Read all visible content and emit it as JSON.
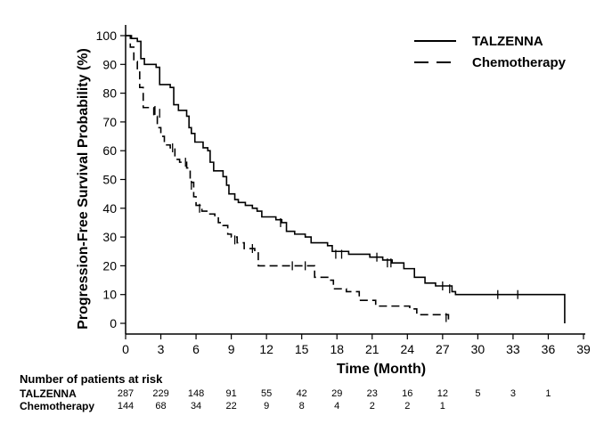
{
  "chart_data": {
    "type": "line",
    "title": "",
    "xlabel": "Time (Month)",
    "ylabel": "Progression-Free Survival Probability (%)",
    "xlim": [
      0,
      39
    ],
    "ylim": [
      0,
      100
    ],
    "x_ticks": [
      0,
      3,
      6,
      9,
      12,
      15,
      18,
      21,
      24,
      27,
      30,
      33,
      36,
      39
    ],
    "y_ticks": [
      0,
      10,
      20,
      30,
      40,
      50,
      60,
      70,
      80,
      90,
      100
    ],
    "legend_position": "top-right",
    "series": [
      {
        "name": "TALZENNA",
        "style": "solid",
        "points": [
          [
            0,
            100
          ],
          [
            0.5,
            99
          ],
          [
            1.0,
            98
          ],
          [
            1.3,
            92
          ],
          [
            1.6,
            90
          ],
          [
            2.6,
            89
          ],
          [
            2.9,
            83
          ],
          [
            3.8,
            82
          ],
          [
            4.1,
            76
          ],
          [
            4.5,
            74
          ],
          [
            5.2,
            72
          ],
          [
            5.4,
            68
          ],
          [
            5.6,
            66
          ],
          [
            5.9,
            63
          ],
          [
            6.6,
            61
          ],
          [
            7.0,
            60
          ],
          [
            7.2,
            56
          ],
          [
            7.5,
            53
          ],
          [
            8.3,
            51
          ],
          [
            8.6,
            48
          ],
          [
            8.8,
            45
          ],
          [
            9.3,
            43
          ],
          [
            9.6,
            42
          ],
          [
            10.2,
            41
          ],
          [
            10.8,
            40
          ],
          [
            11.2,
            39
          ],
          [
            11.6,
            37
          ],
          [
            12.2,
            37
          ],
          [
            12.8,
            36
          ],
          [
            13.3,
            35
          ],
          [
            13.7,
            32
          ],
          [
            14.4,
            31
          ],
          [
            15.3,
            30
          ],
          [
            15.8,
            28
          ],
          [
            17.2,
            27
          ],
          [
            17.6,
            25
          ],
          [
            19.0,
            24
          ],
          [
            20.8,
            23
          ],
          [
            21.9,
            22
          ],
          [
            22.7,
            21
          ],
          [
            23.7,
            19
          ],
          [
            24.6,
            16
          ],
          [
            25.5,
            14
          ],
          [
            26.4,
            13
          ],
          [
            27.3,
            13
          ],
          [
            27.8,
            11
          ],
          [
            28.1,
            10
          ],
          [
            37.4,
            10
          ],
          [
            37.4,
            0
          ]
        ],
        "censored": [
          [
            13.2,
            35
          ],
          [
            17.9,
            24
          ],
          [
            18.4,
            24
          ],
          [
            21.4,
            23
          ],
          [
            22.3,
            21
          ],
          [
            22.6,
            21
          ],
          [
            27.0,
            13
          ],
          [
            27.6,
            12
          ],
          [
            31.7,
            10
          ],
          [
            33.4,
            10
          ]
        ]
      },
      {
        "name": "Chemotherapy",
        "style": "dashed",
        "points": [
          [
            0,
            100
          ],
          [
            0.4,
            96
          ],
          [
            0.7,
            91
          ],
          [
            1.0,
            88
          ],
          [
            1.2,
            82
          ],
          [
            1.5,
            75
          ],
          [
            2.4,
            72
          ],
          [
            2.7,
            68
          ],
          [
            3.0,
            65
          ],
          [
            3.3,
            62
          ],
          [
            3.8,
            61
          ],
          [
            4.2,
            57
          ],
          [
            4.6,
            56
          ],
          [
            5.2,
            54
          ],
          [
            5.5,
            49
          ],
          [
            5.8,
            44
          ],
          [
            6.0,
            41
          ],
          [
            6.5,
            39
          ],
          [
            7.0,
            38
          ],
          [
            7.6,
            37
          ],
          [
            7.9,
            35
          ],
          [
            8.3,
            34
          ],
          [
            8.7,
            31
          ],
          [
            9.0,
            30
          ],
          [
            9.5,
            28
          ],
          [
            10.1,
            26
          ],
          [
            11.0,
            25
          ],
          [
            11.3,
            20
          ],
          [
            15.7,
            20
          ],
          [
            16.1,
            16
          ],
          [
            17.3,
            15
          ],
          [
            17.7,
            12
          ],
          [
            18.8,
            11
          ],
          [
            19.9,
            8
          ],
          [
            21.3,
            6
          ],
          [
            24.2,
            5
          ],
          [
            24.8,
            3
          ],
          [
            27.5,
            2
          ],
          [
            27.5,
            0
          ]
        ],
        "censored": [
          [
            2.5,
            74
          ],
          [
            2.9,
            73
          ],
          [
            4.0,
            61
          ],
          [
            5.1,
            56
          ],
          [
            5.6,
            48
          ],
          [
            6.3,
            40
          ],
          [
            9.3,
            29
          ],
          [
            10.8,
            26
          ],
          [
            14.2,
            20
          ],
          [
            15.3,
            20
          ],
          [
            27.3,
            2
          ]
        ]
      }
    ],
    "risk_table": {
      "title": "Number of patients at risk",
      "times": [
        0,
        3,
        6,
        9,
        12,
        15,
        18,
        21,
        24,
        27,
        30,
        33,
        36
      ],
      "rows": [
        {
          "label": "TALZENNA",
          "values": [
            "287",
            "229",
            "148",
            "91",
            "55",
            "42",
            "29",
            "23",
            "16",
            "12",
            "5",
            "3",
            "1"
          ]
        },
        {
          "label": "Chemotherapy",
          "values": [
            "144",
            "68",
            "34",
            "22",
            "9",
            "8",
            "4",
            "2",
            "2",
            "1",
            "",
            "",
            ""
          ]
        }
      ]
    }
  }
}
